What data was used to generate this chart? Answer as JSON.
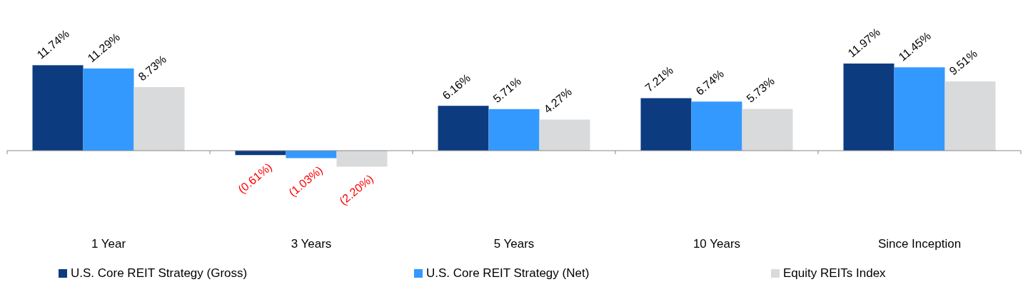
{
  "chart_data": {
    "type": "bar",
    "categories": [
      "1 Year",
      "3 Years",
      "5 Years",
      "10 Years",
      "Since Inception"
    ],
    "series": [
      {
        "name": "U.S. Core REIT Strategy (Gross)",
        "color": "#0d3b80",
        "values": [
          11.74,
          -0.61,
          6.16,
          7.21,
          11.97
        ],
        "value_labels": [
          "11.74%",
          "(0.61%)",
          "6.16%",
          "7.21%",
          "11.97%"
        ]
      },
      {
        "name": "U.S. Core REIT Strategy (Net)",
        "color": "#3399ff",
        "values": [
          11.29,
          -1.03,
          5.71,
          6.74,
          11.45
        ],
        "value_labels": [
          "11.29%",
          "(1.03%)",
          "5.71%",
          "6.74%",
          "11.45%"
        ]
      },
      {
        "name": "Equity REITs Index",
        "color": "#d9dadb",
        "values": [
          8.73,
          -2.2,
          4.27,
          5.73,
          9.51
        ],
        "value_labels": [
          "8.73%",
          "(2.20%)",
          "4.27%",
          "5.73%",
          "9.51%"
        ]
      }
    ],
    "legend": "bottom"
  }
}
